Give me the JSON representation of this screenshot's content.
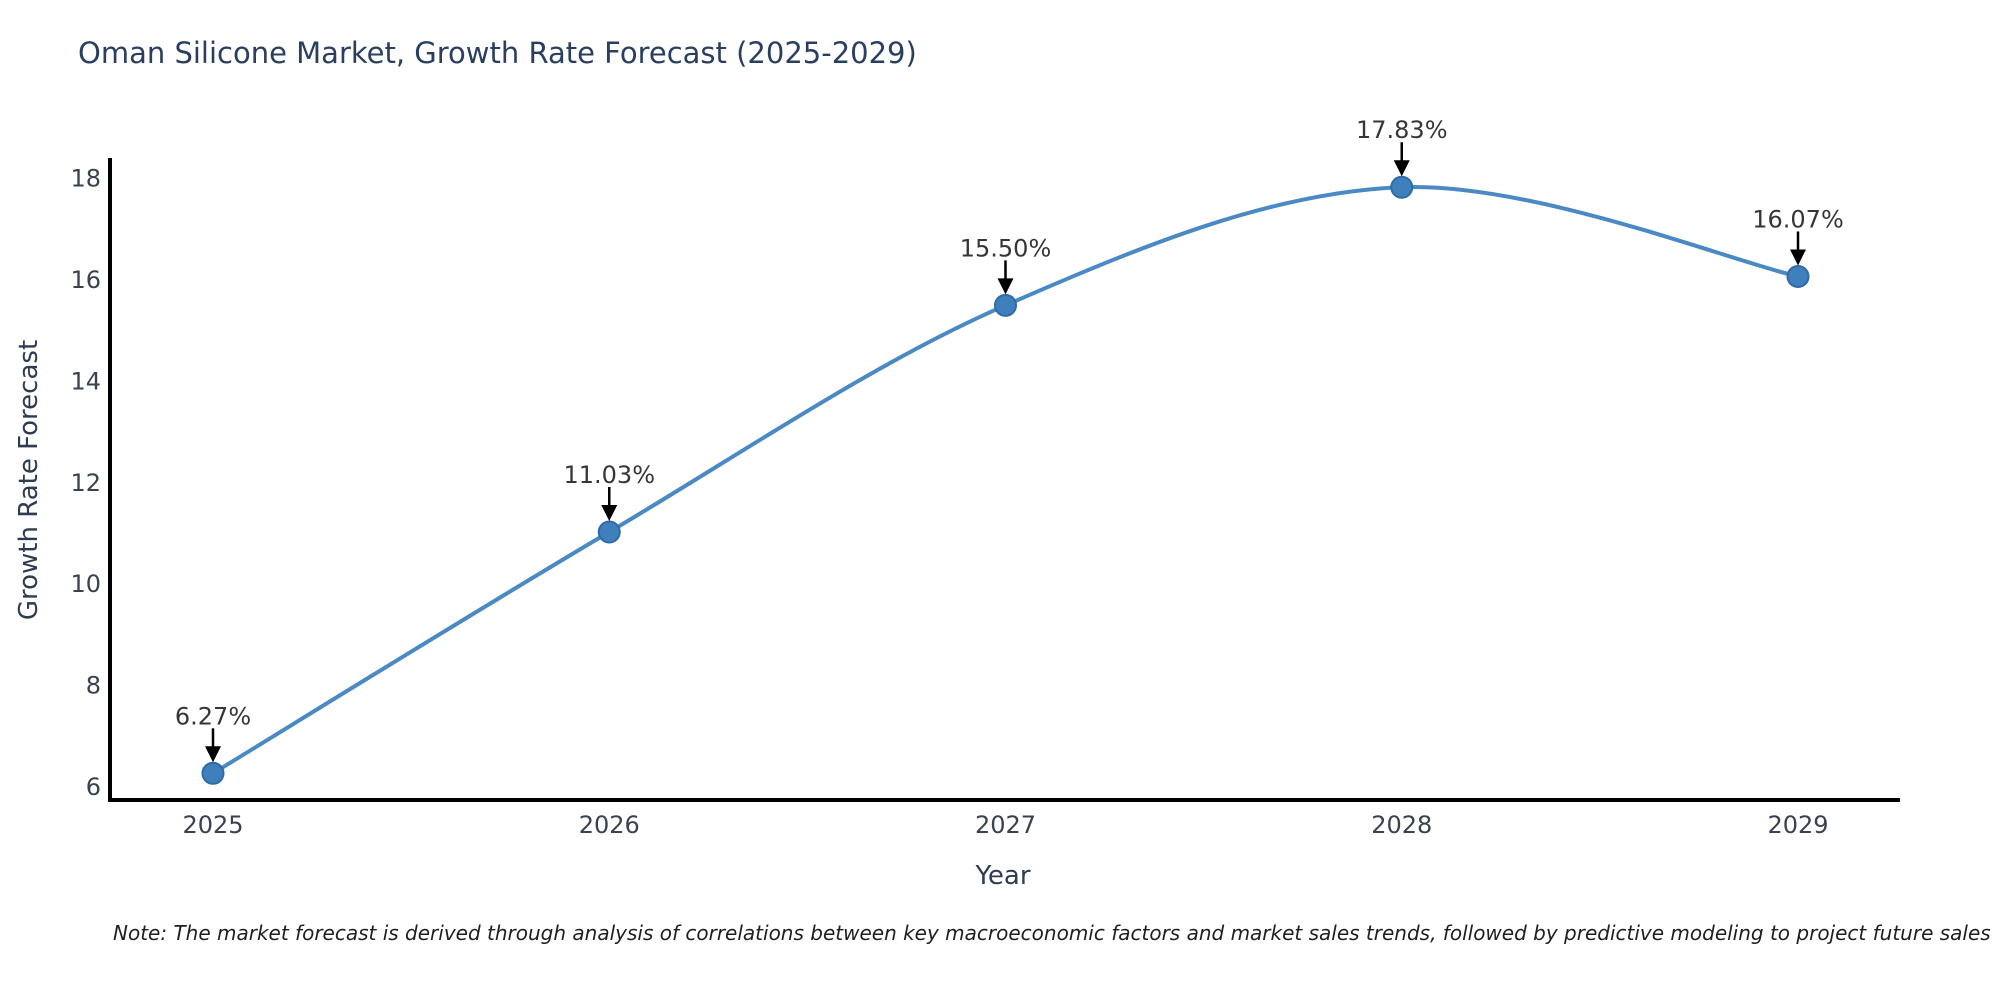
{
  "figure": {
    "background": "#ffffff",
    "note": "Note: The market forecast is derived through analysis of correlations between key macroeconomic factors and market sales trends, followed by predictive modeling to project future sales"
  },
  "chart_data": {
    "type": "line",
    "title": "Oman Silicone Market, Growth Rate Forecast (2025-2029)",
    "xlabel": "Year",
    "ylabel": "Growth Rate Forecast",
    "x": [
      2025,
      2026,
      2027,
      2028,
      2029
    ],
    "series": [
      {
        "name": "Growth Rate Forecast",
        "values": [
          6.27,
          11.03,
          15.5,
          17.83,
          16.07
        ]
      }
    ],
    "point_labels": [
      "6.27%",
      "11.03%",
      "15.50%",
      "17.83%",
      "16.07%"
    ],
    "y_ticks": [
      6,
      8,
      10,
      12,
      14,
      16,
      18
    ],
    "x_tick_labels": [
      "2025",
      "2026",
      "2027",
      "2028",
      "2029"
    ],
    "ylim": [
      5.7,
      18.4
    ],
    "grid": false,
    "legend": "none",
    "curve": "smooth spline through points",
    "annotation_style": "percent labels above points with black down arrows",
    "colors": {
      "line": "#4a89c4",
      "marker_fill": "#3e7fbc",
      "marker_edge": "#2f6ba5",
      "arrow": "#000000",
      "title_text": "#2a3f5f",
      "axis_label_text": "#2e3b50",
      "tick_text": "#39424f",
      "annotation_text": "#363636",
      "spine": "#000000"
    }
  }
}
